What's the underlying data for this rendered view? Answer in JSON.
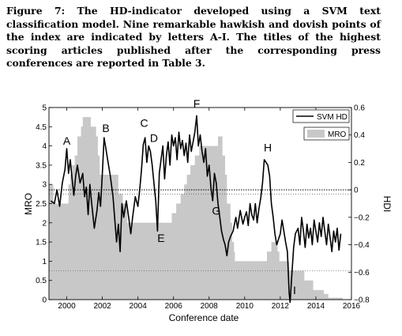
{
  "caption": {
    "label": "Figure 7:",
    "text": "The HD-indicator developed using a SVM text classification model. Nine remarkable hawkish and dovish points of the index are indicated by letters A-I. The titles of the highest scoring articles published after the corresponding press conferences are reported in Table 3."
  },
  "chart_data": {
    "type": "line",
    "title": "",
    "xlabel": "Conference date",
    "ylabel_left": "MRO",
    "ylabel_right": "HDI",
    "xlim": [
      1999,
      2016
    ],
    "ylim_left": [
      0,
      5
    ],
    "ylim_right": [
      -0.8,
      0.6
    ],
    "x_ticks": [
      "2000",
      "2002",
      "2004",
      "2006",
      "2008",
      "2010",
      "2012",
      "2014",
      "2016"
    ],
    "y_left_ticks": [
      "0",
      "0.5",
      "1",
      "1.5",
      "2",
      "2.5",
      "3",
      "3.5",
      "4",
      "4.5",
      "5"
    ],
    "y_right_ticks": [
      "−0.8",
      "−0.6",
      "−0.4",
      "−0.2",
      "0",
      "0.2",
      "0.4",
      "0.6"
    ],
    "legend_placement": "top-right",
    "colors": {
      "hd_line": "#000000",
      "mro_fill": "#c8c8c8",
      "axis": "#000000"
    },
    "series": [
      {
        "name": "SVM HD",
        "axis": "right",
        "style": "line",
        "points": [
          [
            1999.1,
            -0.08
          ],
          [
            1999.3,
            -0.1
          ],
          [
            1999.45,
            0.0
          ],
          [
            1999.6,
            -0.12
          ],
          [
            1999.75,
            0.05
          ],
          [
            1999.9,
            0.15
          ],
          [
            2000.0,
            0.3
          ],
          [
            2000.1,
            0.12
          ],
          [
            2000.2,
            0.22
          ],
          [
            2000.3,
            0.08
          ],
          [
            2000.4,
            -0.04
          ],
          [
            2000.5,
            0.1
          ],
          [
            2000.6,
            0.18
          ],
          [
            2000.75,
            0.05
          ],
          [
            2000.9,
            0.12
          ],
          [
            2001.0,
            -0.05
          ],
          [
            2001.1,
            0.02
          ],
          [
            2001.2,
            -0.18
          ],
          [
            2001.3,
            0.04
          ],
          [
            2001.4,
            -0.1
          ],
          [
            2001.55,
            -0.28
          ],
          [
            2001.7,
            -0.15
          ],
          [
            2001.8,
            -0.02
          ],
          [
            2001.9,
            -0.12
          ],
          [
            2002.0,
            0.12
          ],
          [
            2002.1,
            0.38
          ],
          [
            2002.2,
            0.3
          ],
          [
            2002.3,
            0.22
          ],
          [
            2002.45,
            0.1
          ],
          [
            2002.6,
            -0.05
          ],
          [
            2002.7,
            -0.22
          ],
          [
            2002.8,
            -0.38
          ],
          [
            2002.9,
            -0.25
          ],
          [
            2003.0,
            -0.45
          ],
          [
            2003.1,
            -0.1
          ],
          [
            2003.2,
            -0.2
          ],
          [
            2003.35,
            -0.08
          ],
          [
            2003.5,
            -0.22
          ],
          [
            2003.6,
            -0.32
          ],
          [
            2003.7,
            -0.2
          ],
          [
            2003.85,
            -0.05
          ],
          [
            2004.0,
            -0.12
          ],
          [
            2004.1,
            0.0
          ],
          [
            2004.2,
            0.15
          ],
          [
            2004.3,
            0.33
          ],
          [
            2004.4,
            0.38
          ],
          [
            2004.5,
            0.2
          ],
          [
            2004.6,
            0.32
          ],
          [
            2004.7,
            0.28
          ],
          [
            2004.8,
            0.18
          ],
          [
            2004.9,
            0.05
          ],
          [
            2005.0,
            -0.08
          ],
          [
            2005.1,
            -0.3
          ],
          [
            2005.2,
            0.12
          ],
          [
            2005.3,
            0.22
          ],
          [
            2005.4,
            0.32
          ],
          [
            2005.5,
            0.08
          ],
          [
            2005.6,
            0.25
          ],
          [
            2005.7,
            0.35
          ],
          [
            2005.8,
            0.18
          ],
          [
            2005.9,
            0.4
          ],
          [
            2006.0,
            0.32
          ],
          [
            2006.1,
            0.38
          ],
          [
            2006.2,
            0.22
          ],
          [
            2006.3,
            0.42
          ],
          [
            2006.4,
            0.3
          ],
          [
            2006.5,
            0.36
          ],
          [
            2006.6,
            0.25
          ],
          [
            2006.7,
            0.34
          ],
          [
            2006.8,
            0.2
          ],
          [
            2006.9,
            0.4
          ],
          [
            2007.0,
            0.28
          ],
          [
            2007.1,
            0.35
          ],
          [
            2007.2,
            0.42
          ],
          [
            2007.3,
            0.54
          ],
          [
            2007.4,
            0.32
          ],
          [
            2007.5,
            0.4
          ],
          [
            2007.6,
            0.28
          ],
          [
            2007.7,
            0.2
          ],
          [
            2007.8,
            0.3
          ],
          [
            2007.9,
            0.1
          ],
          [
            2008.0,
            0.18
          ],
          [
            2008.1,
            0.02
          ],
          [
            2008.2,
            -0.08
          ],
          [
            2008.3,
            0.12
          ],
          [
            2008.4,
            0.05
          ],
          [
            2008.5,
            -0.1
          ],
          [
            2008.6,
            -0.2
          ],
          [
            2008.7,
            -0.3
          ],
          [
            2008.8,
            -0.36
          ],
          [
            2008.9,
            -0.4
          ],
          [
            2009.0,
            -0.48
          ],
          [
            2009.1,
            -0.38
          ],
          [
            2009.2,
            -0.34
          ],
          [
            2009.35,
            -0.3
          ],
          [
            2009.5,
            -0.2
          ],
          [
            2009.6,
            -0.28
          ],
          [
            2009.75,
            -0.15
          ],
          [
            2009.9,
            -0.25
          ],
          [
            2010.0,
            -0.2
          ],
          [
            2010.1,
            -0.16
          ],
          [
            2010.2,
            -0.26
          ],
          [
            2010.3,
            -0.1
          ],
          [
            2010.4,
            -0.18
          ],
          [
            2010.5,
            -0.22
          ],
          [
            2010.6,
            -0.1
          ],
          [
            2010.7,
            -0.24
          ],
          [
            2010.8,
            -0.14
          ],
          [
            2010.9,
            -0.06
          ],
          [
            2011.0,
            0.05
          ],
          [
            2011.1,
            0.22
          ],
          [
            2011.2,
            0.2
          ],
          [
            2011.3,
            0.18
          ],
          [
            2011.4,
            0.1
          ],
          [
            2011.5,
            -0.1
          ],
          [
            2011.6,
            -0.2
          ],
          [
            2011.7,
            -0.32
          ],
          [
            2011.8,
            -0.4
          ],
          [
            2011.9,
            -0.36
          ],
          [
            2012.0,
            -0.32
          ],
          [
            2012.1,
            -0.22
          ],
          [
            2012.2,
            -0.3
          ],
          [
            2012.3,
            -0.38
          ],
          [
            2012.4,
            -0.45
          ],
          [
            2012.5,
            -0.75
          ],
          [
            2012.55,
            -0.82
          ],
          [
            2012.65,
            -0.62
          ],
          [
            2012.75,
            -0.42
          ],
          [
            2012.85,
            -0.32
          ],
          [
            2013.0,
            -0.28
          ],
          [
            2013.1,
            -0.4
          ],
          [
            2013.2,
            -0.2
          ],
          [
            2013.3,
            -0.3
          ],
          [
            2013.4,
            -0.42
          ],
          [
            2013.5,
            -0.25
          ],
          [
            2013.6,
            -0.35
          ],
          [
            2013.7,
            -0.28
          ],
          [
            2013.8,
            -0.4
          ],
          [
            2013.9,
            -0.22
          ],
          [
            2014.0,
            -0.3
          ],
          [
            2014.1,
            -0.38
          ],
          [
            2014.2,
            -0.24
          ],
          [
            2014.3,
            -0.34
          ],
          [
            2014.4,
            -0.2
          ],
          [
            2014.5,
            -0.3
          ],
          [
            2014.6,
            -0.4
          ],
          [
            2014.7,
            -0.25
          ],
          [
            2014.8,
            -0.35
          ],
          [
            2014.9,
            -0.45
          ],
          [
            2015.0,
            -0.3
          ],
          [
            2015.1,
            -0.38
          ],
          [
            2015.2,
            -0.28
          ],
          [
            2015.3,
            -0.44
          ],
          [
            2015.4,
            -0.32
          ]
        ]
      },
      {
        "name": "MRO",
        "axis": "left",
        "style": "area",
        "points": [
          [
            1999.0,
            3.0
          ],
          [
            1999.25,
            2.5
          ],
          [
            2000.0,
            2.5
          ],
          [
            2000.1,
            3.0
          ],
          [
            2000.2,
            3.25
          ],
          [
            2000.3,
            3.5
          ],
          [
            2000.45,
            3.75
          ],
          [
            2000.6,
            4.25
          ],
          [
            2000.8,
            4.5
          ],
          [
            2000.9,
            4.75
          ],
          [
            2001.35,
            4.5
          ],
          [
            2001.65,
            4.25
          ],
          [
            2001.75,
            3.75
          ],
          [
            2001.85,
            3.25
          ],
          [
            2002.0,
            3.25
          ],
          [
            2002.9,
            2.75
          ],
          [
            2003.15,
            2.5
          ],
          [
            2003.4,
            2.0
          ],
          [
            2005.9,
            2.25
          ],
          [
            2006.15,
            2.5
          ],
          [
            2006.4,
            2.75
          ],
          [
            2006.6,
            3.0
          ],
          [
            2006.75,
            3.25
          ],
          [
            2006.95,
            3.5
          ],
          [
            2007.2,
            3.75
          ],
          [
            2007.45,
            4.0
          ],
          [
            2008.5,
            4.25
          ],
          [
            2008.75,
            3.75
          ],
          [
            2008.9,
            3.25
          ],
          [
            2009.0,
            2.5
          ],
          [
            2009.2,
            2.0
          ],
          [
            2009.3,
            1.5
          ],
          [
            2009.4,
            1.25
          ],
          [
            2009.45,
            1.0
          ],
          [
            2011.25,
            1.25
          ],
          [
            2011.5,
            1.5
          ],
          [
            2011.85,
            1.25
          ],
          [
            2011.95,
            1.0
          ],
          [
            2012.5,
            0.75
          ],
          [
            2013.35,
            0.5
          ],
          [
            2013.85,
            0.25
          ],
          [
            2014.45,
            0.15
          ],
          [
            2014.7,
            0.05
          ],
          [
            2015.5,
            0.05
          ]
        ]
      }
    ],
    "annotations": [
      {
        "text": "A",
        "x": 2000.0,
        "y": 0.33
      },
      {
        "text": "B",
        "x": 2002.2,
        "y": 0.42
      },
      {
        "text": "C",
        "x": 2004.35,
        "y": 0.46
      },
      {
        "text": "D",
        "x": 2004.9,
        "y": 0.35
      },
      {
        "text": "E",
        "x": 2005.3,
        "y": -0.38
      },
      {
        "text": "F",
        "x": 2007.3,
        "y": 0.6
      },
      {
        "text": "G",
        "x": 2008.4,
        "y": -0.18
      },
      {
        "text": "H",
        "x": 2011.3,
        "y": 0.28
      },
      {
        "text": "I",
        "x": 2012.8,
        "y": -0.76
      }
    ]
  }
}
